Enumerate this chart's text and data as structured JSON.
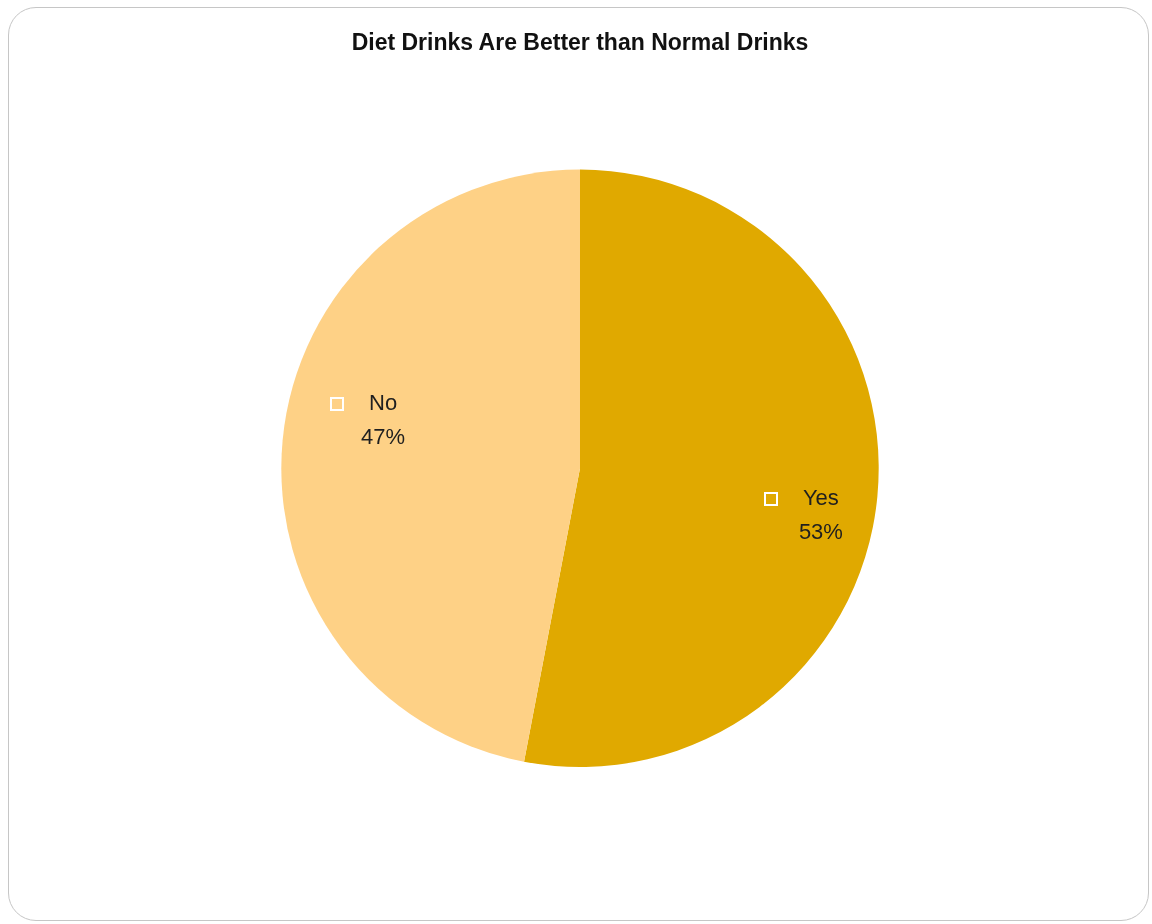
{
  "chart_data": {
    "type": "pie",
    "title": "Diet Drinks Are Better than Normal Drinks",
    "categories": [
      "Yes",
      "No"
    ],
    "values": [
      53,
      47
    ],
    "colors": [
      "#e0a900",
      "#fed186"
    ],
    "value_labels": [
      "53%",
      "47%"
    ]
  }
}
